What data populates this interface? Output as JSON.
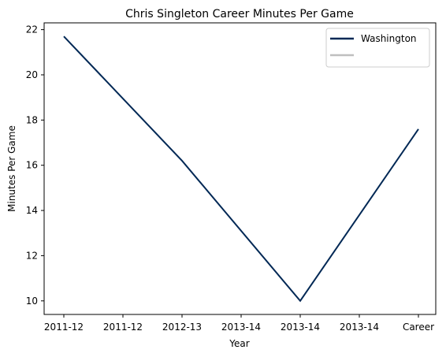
{
  "chart_data": {
    "type": "line",
    "title": "Chris Singleton  Career Minutes Per Game",
    "xlabel": "Year",
    "ylabel": "Minutes Per Game",
    "categories": [
      "2011-12",
      "2011-12",
      "2012-13",
      "2013-14",
      "2013-14",
      "2013-14",
      "Career"
    ],
    "ylim": [
      9.4,
      22.3
    ],
    "yticks": [
      10,
      12,
      14,
      16,
      18,
      20,
      22
    ],
    "grid": false,
    "legend_position": "top-right",
    "series": [
      {
        "name": "Washington",
        "color": "#002855",
        "points": [
          {
            "x_index": 0,
            "y": 21.7
          },
          {
            "x_index": 2,
            "y": 16.2
          },
          {
            "x_index": 4,
            "y": 10.0
          },
          {
            "x_index": 6,
            "y": 17.6
          }
        ]
      },
      {
        "name": "",
        "color": "#bfbfbf",
        "points": []
      }
    ]
  }
}
